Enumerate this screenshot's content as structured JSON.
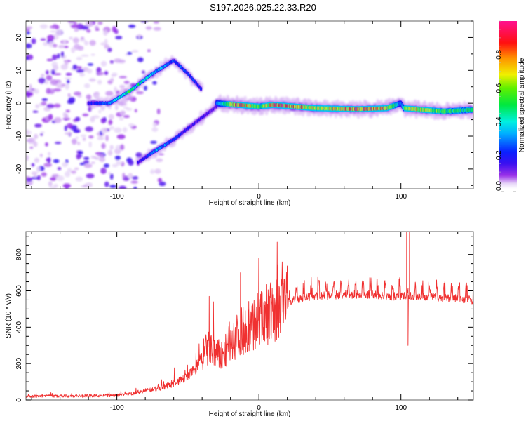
{
  "chart_data": [
    {
      "type": "heatmap",
      "title": "S197.2026.025.22.33.R20",
      "xlabel": "Height of straight line (km)",
      "ylabel": "Frequency (Hz)",
      "xlim": [
        -164,
        151
      ],
      "ylim": [
        -26,
        25
      ],
      "xticks": [
        -100,
        0,
        100
      ],
      "xtick_labels": [
        "-100",
        "0",
        "100"
      ],
      "yticks": [
        -20,
        -10,
        0,
        10,
        20
      ],
      "ytick_labels": [
        "-20",
        "-10",
        "0",
        "10",
        "20"
      ],
      "colorbar": {
        "label": "Normalized spectral amplitude",
        "range": [
          0,
          1
        ],
        "ticks": [
          0.0,
          0.2,
          0.4,
          0.6,
          0.8
        ],
        "tick_labels": [
          "0.0",
          "0.2",
          "0.4",
          "0.6",
          "0.8"
        ],
        "colormap": "rainbow (white-violet-blue-cyan-green-yellow-red-magenta)"
      },
      "features": [
        {
          "name": "main-tone",
          "x_range": [
            -30,
            150
          ],
          "freq_path": [
            [
              -30,
              0
            ],
            [
              -15,
              -0.5
            ],
            [
              0,
              -1
            ],
            [
              10,
              -0.5
            ],
            [
              40,
              -1.5
            ],
            [
              70,
              -1.8
            ],
            [
              90,
              -1.5
            ],
            [
              100,
              0
            ],
            [
              102,
              -1.5
            ],
            [
              130,
              -2.5
            ],
            [
              150,
              -2
            ]
          ],
          "amplitude_path": [
            [
              -30,
              0.3
            ],
            [
              -15,
              0.9
            ],
            [
              0,
              0.6
            ],
            [
              15,
              0.95
            ],
            [
              40,
              0.7
            ],
            [
              70,
              0.9
            ],
            [
              90,
              0.8
            ],
            [
              100,
              0.3
            ],
            [
              105,
              0.8
            ],
            [
              125,
              0.6
            ],
            [
              150,
              0.5
            ]
          ]
        },
        {
          "name": "upper-branch",
          "x_range": [
            -120,
            -40
          ],
          "freq_path": [
            [
              -120,
              0
            ],
            [
              -105,
              0
            ],
            [
              -90,
              4
            ],
            [
              -75,
              9
            ],
            [
              -60,
              13
            ],
            [
              -50,
              9
            ],
            [
              -40,
              4
            ],
            [
              -30,
              0
            ]
          ],
          "amplitude_path": [
            [
              -120,
              0.2
            ],
            [
              -105,
              0.3
            ],
            [
              -90,
              0.55
            ],
            [
              -80,
              0.4
            ],
            [
              -65,
              0.3
            ],
            [
              -50,
              0.25
            ],
            [
              -35,
              0.2
            ]
          ]
        },
        {
          "name": "lower-branch",
          "x_range": [
            -85,
            -30
          ],
          "freq_path": [
            [
              -85,
              -18
            ],
            [
              -75,
              -15
            ],
            [
              -60,
              -11
            ],
            [
              -45,
              -6
            ],
            [
              -30,
              -1
            ]
          ],
          "amplitude_path": [
            [
              -85,
              0.15
            ],
            [
              -70,
              0.35
            ],
            [
              -55,
              0.2
            ],
            [
              -40,
              0.15
            ]
          ]
        },
        {
          "name": "noise-field",
          "x_range": [
            -164,
            -90
          ],
          "freq_path": [
            [
              -164,
              0
            ]
          ],
          "amplitude_path": [
            [
              -164,
              0.1
            ]
          ]
        }
      ]
    },
    {
      "type": "line",
      "xlabel": "Height of straight line (km)",
      "ylabel": "SNR (10 * v/v)",
      "xlim": [
        -164,
        151
      ],
      "ylim": [
        0,
        926
      ],
      "xticks": [
        -100,
        0,
        100
      ],
      "xtick_labels": [
        "-100",
        "0",
        "100"
      ],
      "yticks": [
        0,
        200,
        400,
        600,
        800
      ],
      "ytick_labels": [
        "0",
        "200",
        "400",
        "600",
        "800"
      ],
      "line_color": "#f03030",
      "series": [
        {
          "name": "SNR",
          "envelope": {
            "x": [
              -164,
              -140,
              -120,
              -100,
              -90,
              -80,
              -70,
              -60,
              -50,
              -45,
              -40,
              -35,
              -30,
              -25,
              -20,
              -15,
              -10,
              -5,
              0,
              5,
              10,
              15,
              20,
              25,
              30,
              40,
              50,
              60,
              70,
              80,
              90,
              100,
              102,
              103,
              104,
              105,
              106,
              110,
              120,
              130,
              140,
              151
            ],
            "y": [
              20,
              22,
              22,
              25,
              35,
              50,
              65,
              90,
              130,
              170,
              230,
              280,
              240,
              230,
              320,
              340,
              380,
              400,
              430,
              450,
              460,
              500,
              540,
              570,
              580,
              590,
              595,
              600,
              600,
              600,
              590,
              590,
              590,
              590,
              590,
              590,
              590,
              590,
              590,
              580,
              580,
              570
            ]
          },
          "spikes": [
            {
              "x": -35,
              "y": 570
            },
            {
              "x": -32,
              "y": 540
            },
            {
              "x": -13,
              "y": 700
            },
            {
              "x": 13,
              "y": 745
            },
            {
              "x": 104,
              "y": 926
            },
            {
              "x": 105,
              "y": 300
            },
            {
              "x": 106,
              "y": 926
            }
          ]
        }
      ]
    }
  ]
}
